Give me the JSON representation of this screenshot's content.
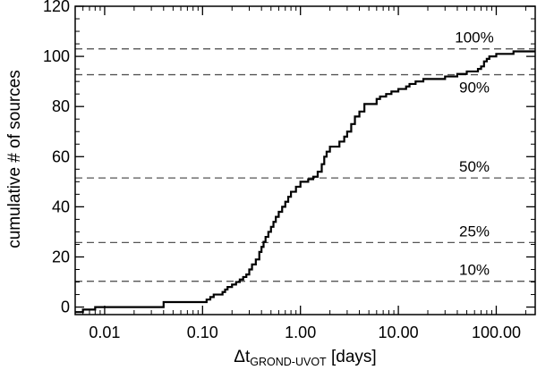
{
  "chart_data": {
    "type": "line",
    "xscale": "log",
    "xlim": [
      0.005,
      250
    ],
    "ylim": [
      -3,
      120
    ],
    "xlabel": {
      "main": "Δt",
      "subscript": "GROND-UVOT",
      "suffix": " [days]"
    },
    "ylabel": "cumulative # of sources",
    "x_ticks": [
      {
        "value": 0.01,
        "label": "0.01"
      },
      {
        "value": 0.1,
        "label": "0.10"
      },
      {
        "value": 1,
        "label": "1.00"
      },
      {
        "value": 10,
        "label": "10.00"
      },
      {
        "value": 100,
        "label": "100.00"
      }
    ],
    "y_ticks": [
      {
        "value": 0,
        "label": "0"
      },
      {
        "value": 20,
        "label": "20"
      },
      {
        "value": 40,
        "label": "40"
      },
      {
        "value": 60,
        "label": "60"
      },
      {
        "value": 80,
        "label": "80"
      },
      {
        "value": 100,
        "label": "100"
      },
      {
        "value": 120,
        "label": "120"
      }
    ],
    "reference_lines": [
      {
        "y": 103,
        "label": "100%",
        "label_pos": "above"
      },
      {
        "y": 92.7,
        "label": "90%",
        "label_pos": "below"
      },
      {
        "y": 51.5,
        "label": "50%",
        "label_pos": "above"
      },
      {
        "y": 25.75,
        "label": "25%",
        "label_pos": "above"
      },
      {
        "y": 10.3,
        "label": "10%",
        "label_pos": "above"
      }
    ],
    "series": [
      {
        "style": "stepped",
        "points": [
          [
            0.005,
            -2
          ],
          [
            0.006,
            -1
          ],
          [
            0.008,
            0
          ],
          [
            0.02,
            0
          ],
          [
            0.04,
            2
          ],
          [
            0.105,
            2
          ],
          [
            0.11,
            3
          ],
          [
            0.12,
            4
          ],
          [
            0.13,
            5
          ],
          [
            0.15,
            5
          ],
          [
            0.16,
            6
          ],
          [
            0.17,
            7
          ],
          [
            0.18,
            8
          ],
          [
            0.2,
            9
          ],
          [
            0.22,
            10
          ],
          [
            0.24,
            11
          ],
          [
            0.26,
            12
          ],
          [
            0.28,
            13
          ],
          [
            0.3,
            15
          ],
          [
            0.32,
            17
          ],
          [
            0.35,
            19
          ],
          [
            0.38,
            22
          ],
          [
            0.4,
            24
          ],
          [
            0.42,
            26
          ],
          [
            0.44,
            28
          ],
          [
            0.47,
            30
          ],
          [
            0.5,
            32
          ],
          [
            0.53,
            34
          ],
          [
            0.56,
            36
          ],
          [
            0.6,
            38
          ],
          [
            0.65,
            40
          ],
          [
            0.7,
            42
          ],
          [
            0.75,
            44
          ],
          [
            0.8,
            46
          ],
          [
            0.9,
            48
          ],
          [
            1.0,
            50
          ],
          [
            1.1,
            50
          ],
          [
            1.2,
            51
          ],
          [
            1.35,
            52
          ],
          [
            1.5,
            54
          ],
          [
            1.65,
            57
          ],
          [
            1.75,
            60
          ],
          [
            1.85,
            62
          ],
          [
            2.0,
            64
          ],
          [
            2.3,
            64
          ],
          [
            2.5,
            66
          ],
          [
            2.8,
            68
          ],
          [
            3.0,
            70
          ],
          [
            3.3,
            73
          ],
          [
            3.6,
            76
          ],
          [
            4.0,
            78
          ],
          [
            4.5,
            81
          ],
          [
            5.5,
            81
          ],
          [
            6.0,
            83
          ],
          [
            6.5,
            84
          ],
          [
            7.5,
            85
          ],
          [
            8.5,
            86
          ],
          [
            10.0,
            87
          ],
          [
            12.0,
            88
          ],
          [
            13.0,
            89
          ],
          [
            15.0,
            90
          ],
          [
            18.0,
            91
          ],
          [
            25.0,
            91
          ],
          [
            30.0,
            92
          ],
          [
            40.0,
            93
          ],
          [
            50.0,
            94
          ],
          [
            65.0,
            95
          ],
          [
            70.0,
            96
          ],
          [
            75.0,
            98
          ],
          [
            80.0,
            99
          ],
          [
            85.0,
            100
          ],
          [
            100.0,
            101
          ],
          [
            150.0,
            102
          ],
          [
            250.0,
            102
          ]
        ]
      }
    ]
  }
}
